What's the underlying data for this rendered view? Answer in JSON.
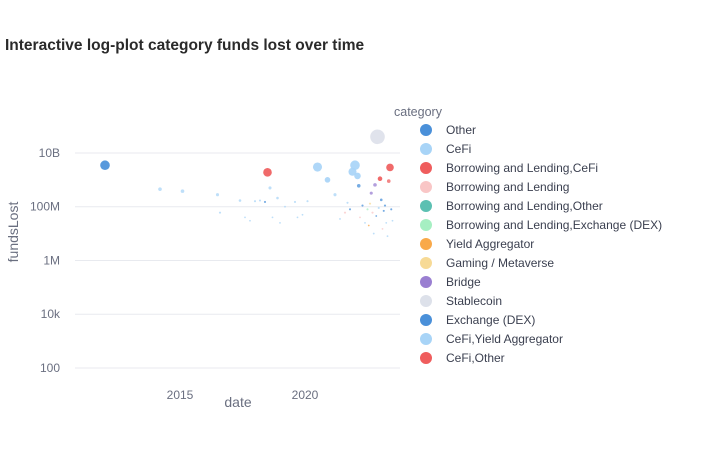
{
  "chart_data": {
    "type": "scatter",
    "title": "Interactive log-plot category funds lost over time",
    "xlabel": "date",
    "ylabel": "fundsLost",
    "y_scale": "log",
    "xlim": [
      2010.8,
      2023.8
    ],
    "ylim": [
      30,
      200000000000
    ],
    "x_ticks": [
      {
        "value": 2015,
        "label": "2015"
      },
      {
        "value": 2020,
        "label": "2020"
      }
    ],
    "y_ticks": [
      {
        "value": 100,
        "label": "100"
      },
      {
        "value": 10000,
        "label": "10k"
      },
      {
        "value": 1000000,
        "label": "1M"
      },
      {
        "value": 100000000,
        "label": "100M"
      },
      {
        "value": 10000000000,
        "label": "10B"
      }
    ],
    "grid": "horizontal",
    "legend": {
      "title": "category",
      "placement": "right",
      "entries": [
        {
          "name": "Other",
          "color": "#4a90d9"
        },
        {
          "name": "CeFi",
          "color": "#a8d4f7"
        },
        {
          "name": "Borrowing and Lending,CeFi",
          "color": "#ef5d5d"
        },
        {
          "name": "Borrowing and Lending",
          "color": "#f9c6c6"
        },
        {
          "name": "Borrowing and Lending,Other",
          "color": "#5cc0b2"
        },
        {
          "name": "Borrowing and Lending,Exchange (DEX)",
          "color": "#a6efc2"
        },
        {
          "name": "Yield Aggregator",
          "color": "#f9a94a"
        },
        {
          "name": "Gaming / Metaverse",
          "color": "#f7da96"
        },
        {
          "name": "Bridge",
          "color": "#9a7fd1"
        },
        {
          "name": "Stablecoin",
          "color": "#dde1ea"
        },
        {
          "name": "Exchange (DEX)",
          "color": "#4a90d9"
        },
        {
          "name": "CeFi,Yield Aggregator",
          "color": "#a8d4f7"
        },
        {
          "name": "CeFi,Other",
          "color": "#ef5d5d"
        }
      ]
    },
    "points": [
      {
        "x": 2012.0,
        "y": 3500000000,
        "size": 9,
        "category": "Other"
      },
      {
        "x": 2014.2,
        "y": 450000000,
        "size": 3,
        "category": "CeFi"
      },
      {
        "x": 2015.1,
        "y": 380000000,
        "size": 3,
        "category": "CeFi"
      },
      {
        "x": 2016.5,
        "y": 280000000,
        "size": 2.5,
        "category": "CeFi"
      },
      {
        "x": 2016.6,
        "y": 60000000,
        "size": 1.5,
        "category": "CeFi"
      },
      {
        "x": 2017.4,
        "y": 170000000,
        "size": 2,
        "category": "CeFi"
      },
      {
        "x": 2017.6,
        "y": 40000000,
        "size": 1.2,
        "category": "CeFi"
      },
      {
        "x": 2017.8,
        "y": 30000000,
        "size": 1.2,
        "category": "CeFi"
      },
      {
        "x": 2018.0,
        "y": 160000000,
        "size": 1.5,
        "category": "CeFi"
      },
      {
        "x": 2018.2,
        "y": 170000000,
        "size": 1.5,
        "category": "CeFi"
      },
      {
        "x": 2018.4,
        "y": 150000000,
        "size": 1.5,
        "category": "Other"
      },
      {
        "x": 2018.5,
        "y": 1900000000,
        "size": 8,
        "category": "Borrowing and Lending,CeFi"
      },
      {
        "x": 2018.6,
        "y": 500000000,
        "size": 2.5,
        "category": "CeFi"
      },
      {
        "x": 2018.7,
        "y": 40000000,
        "size": 1.2,
        "category": "CeFi"
      },
      {
        "x": 2018.9,
        "y": 210000000,
        "size": 2,
        "category": "CeFi"
      },
      {
        "x": 2019.0,
        "y": 25000000,
        "size": 1.2,
        "category": "CeFi"
      },
      {
        "x": 2019.2,
        "y": 100000000,
        "size": 1.2,
        "category": "CeFi"
      },
      {
        "x": 2019.6,
        "y": 150000000,
        "size": 1.5,
        "category": "CeFi"
      },
      {
        "x": 2019.7,
        "y": 40000000,
        "size": 1.2,
        "category": "CeFi"
      },
      {
        "x": 2019.9,
        "y": 50000000,
        "size": 1.2,
        "category": "CeFi"
      },
      {
        "x": 2020.1,
        "y": 160000000,
        "size": 1.5,
        "category": "CeFi"
      },
      {
        "x": 2020.5,
        "y": 3000000000,
        "size": 8.5,
        "category": "CeFi"
      },
      {
        "x": 2020.9,
        "y": 1000000000,
        "size": 5,
        "category": "CeFi"
      },
      {
        "x": 2021.2,
        "y": 280000000,
        "size": 2.5,
        "category": "CeFi"
      },
      {
        "x": 2021.4,
        "y": 35000000,
        "size": 1.2,
        "category": "CeFi"
      },
      {
        "x": 2021.6,
        "y": 60000000,
        "size": 1.5,
        "category": "Borrowing and Lending"
      },
      {
        "x": 2021.7,
        "y": 140000000,
        "size": 1.5,
        "category": "CeFi"
      },
      {
        "x": 2021.8,
        "y": 80000000,
        "size": 1.5,
        "category": "Other"
      },
      {
        "x": 2021.9,
        "y": 2000000000,
        "size": 7.5,
        "category": "CeFi"
      },
      {
        "x": 2022.0,
        "y": 3500000000,
        "size": 9,
        "category": "CeFi"
      },
      {
        "x": 2022.1,
        "y": 1400000000,
        "size": 6,
        "category": "CeFi"
      },
      {
        "x": 2022.15,
        "y": 600000000,
        "size": 3,
        "category": "Other"
      },
      {
        "x": 2022.2,
        "y": 40000000,
        "size": 1.2,
        "category": "Borrowing and Lending"
      },
      {
        "x": 2022.3,
        "y": 110000000,
        "size": 1.5,
        "category": "Exchange (DEX)"
      },
      {
        "x": 2022.4,
        "y": 25000000,
        "size": 1.2,
        "category": "CeFi"
      },
      {
        "x": 2022.5,
        "y": 80000000,
        "size": 1.5,
        "category": "Borrowing and Lending,Exchange (DEX)"
      },
      {
        "x": 2022.55,
        "y": 20000000,
        "size": 1.2,
        "category": "Yield Aggregator"
      },
      {
        "x": 2022.6,
        "y": 130000000,
        "size": 1.5,
        "category": "Gaming / Metaverse"
      },
      {
        "x": 2022.65,
        "y": 320000000,
        "size": 2.5,
        "category": "Bridge"
      },
      {
        "x": 2022.7,
        "y": 60000000,
        "size": 1.5,
        "category": "Borrowing and Lending"
      },
      {
        "x": 2022.75,
        "y": 10000000,
        "size": 1.2,
        "category": "CeFi"
      },
      {
        "x": 2022.8,
        "y": 650000000,
        "size": 3,
        "category": "Bridge"
      },
      {
        "x": 2022.85,
        "y": 45000000,
        "size": 1.2,
        "category": "Exchange (DEX)"
      },
      {
        "x": 2022.9,
        "y": 40000000000,
        "size": 14,
        "category": "Stablecoin"
      },
      {
        "x": 2022.95,
        "y": 90000000,
        "size": 1.5,
        "category": "CeFi"
      },
      {
        "x": 2023.0,
        "y": 1100000000,
        "size": 4,
        "category": "Borrowing and Lending,CeFi"
      },
      {
        "x": 2023.05,
        "y": 180000000,
        "size": 2,
        "category": "Exchange (DEX)"
      },
      {
        "x": 2023.1,
        "y": 15000000,
        "size": 1.2,
        "category": "Borrowing and Lending"
      },
      {
        "x": 2023.15,
        "y": 70000000,
        "size": 1.5,
        "category": "Other"
      },
      {
        "x": 2023.2,
        "y": 110000000,
        "size": 1.5,
        "category": "Exchange (DEX)"
      },
      {
        "x": 2023.25,
        "y": 25000000,
        "size": 1.2,
        "category": "CeFi"
      },
      {
        "x": 2023.3,
        "y": 8000000,
        "size": 1.2,
        "category": "CeFi"
      },
      {
        "x": 2023.35,
        "y": 900000000,
        "size": 3,
        "category": "Borrowing and Lending,CeFi"
      },
      {
        "x": 2023.4,
        "y": 2900000000,
        "size": 7,
        "category": "CeFi,Other"
      },
      {
        "x": 2023.45,
        "y": 80000000,
        "size": 1.5,
        "category": "Exchange (DEX)"
      },
      {
        "x": 2023.5,
        "y": 30000000,
        "size": 1.2,
        "category": "CeFi"
      }
    ]
  }
}
